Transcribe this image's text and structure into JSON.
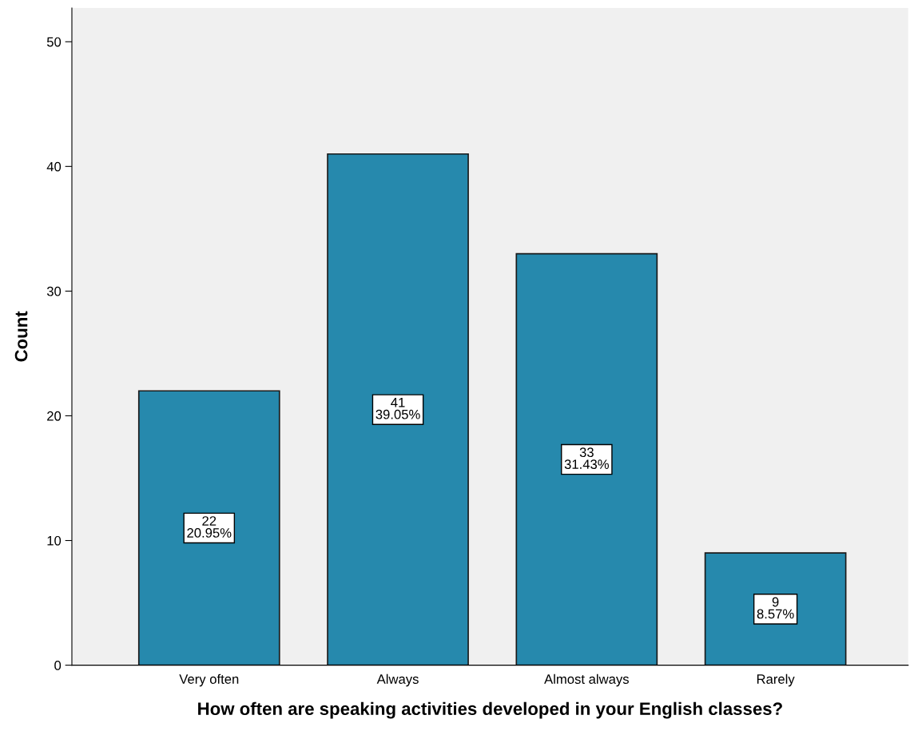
{
  "chart_data": {
    "type": "bar",
    "xlabel": "How often are speaking activities developed in your English classes?",
    "ylabel": "Count",
    "categories": [
      "Very often",
      "Always",
      "Almost always",
      "Rarely"
    ],
    "values": [
      22,
      41,
      33,
      9
    ],
    "value_labels": [
      "22\n20.95%",
      "41\n39.05%",
      "33\n31.43%",
      "9\n8.57%"
    ],
    "color": "#2689ad",
    "ylim": [
      0,
      52.7
    ],
    "yticks": [
      0,
      10,
      20,
      30,
      40,
      50
    ],
    "grid": false
  }
}
